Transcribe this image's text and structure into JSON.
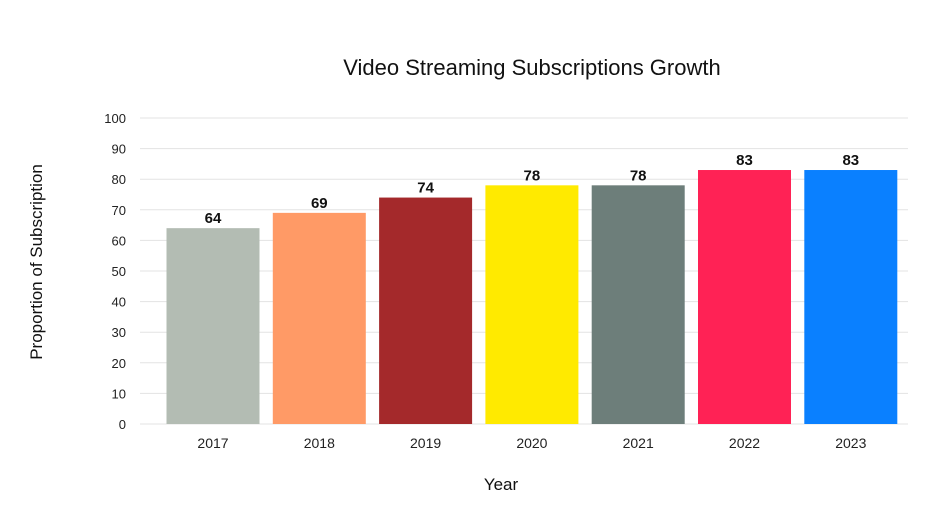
{
  "chart_data": {
    "type": "bar",
    "title": "Video Streaming Subscriptions Growth",
    "xlabel": "Year",
    "ylabel": "Proportion of Subscription",
    "categories": [
      "2017",
      "2018",
      "2019",
      "2020",
      "2021",
      "2022",
      "2023"
    ],
    "values": [
      64,
      69,
      74,
      78,
      78,
      83,
      83
    ],
    "colors": [
      "#b3bcb3",
      "#ff9a66",
      "#a4292b",
      "#ffea00",
      "#6d7e7a",
      "#ff2255",
      "#0a80ff"
    ],
    "ylim": [
      0,
      100
    ],
    "yticks": [
      0,
      10,
      20,
      30,
      40,
      50,
      60,
      70,
      80,
      90,
      100
    ],
    "grid": true,
    "legend": "none"
  }
}
